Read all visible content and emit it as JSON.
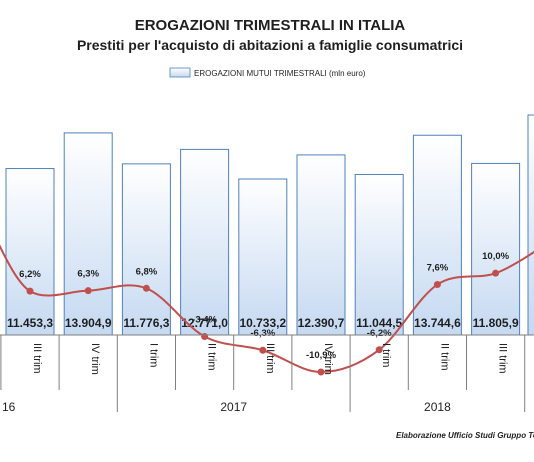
{
  "chart_data": {
    "type": "bar",
    "title": "EROGAZIONI TRIMESTRALI IN ITALIA",
    "subtitle": "Prestiti per l'acquisto di abitazioni a famiglie consumatrici",
    "legend": {
      "placement": "top",
      "entries": [
        "EROGAZIONI MUTUI TRIMESTRALI (mln euro)"
      ]
    },
    "credit": "Elaborazione Ufficio Studi Gruppo Te",
    "categories": [
      "III trim",
      "IV trim",
      "I trim",
      "II trim",
      "III trim",
      "IV trim",
      "I trim",
      "II trim",
      "III trim"
    ],
    "years": [
      {
        "label": "16",
        "start": 0,
        "end": 1
      },
      {
        "label": "2017",
        "start": 2,
        "end": 5
      },
      {
        "label": "2018",
        "start": 6,
        "end": 8
      }
    ],
    "series": [
      {
        "name": "EROGAZIONI MUTUI TRIMESTRALI (mln euro)",
        "type": "bar",
        "values": [
          11453.3,
          13904.9,
          11776.3,
          12771.0,
          10733.2,
          12390.7,
          11044.5,
          13744.6,
          11805.9
        ],
        "value_labels": [
          "11.453,3",
          "13.904,9",
          "11.776,3",
          "12.771,0",
          "10.733,2",
          "12.390,7",
          "11.044,5",
          "13.744,6",
          "11.805,9"
        ]
      },
      {
        "type": "line",
        "values": [
          6.2,
          6.3,
          6.8,
          -3.4,
          -6.3,
          -10.9,
          -6.2,
          7.6,
          10.0
        ],
        "value_labels": [
          "6,2%",
          "6,3%",
          "6,8%",
          "-3,4%",
          "-6,3%",
          "-10,9%",
          "-6,2%",
          "7,6%",
          "10,0%"
        ]
      }
    ],
    "ylim": [
      0,
      15000
    ],
    "y2lim": [
      -20,
      35
    ],
    "grid": false,
    "colors": {
      "bar_fill_top": "#ffffff",
      "bar_fill_bottom": "#c5d9f1",
      "bar_stroke": "#4f81bd",
      "line": "#c0504d",
      "axis": "#7f7f7f",
      "text": "#1f1f1f"
    }
  }
}
